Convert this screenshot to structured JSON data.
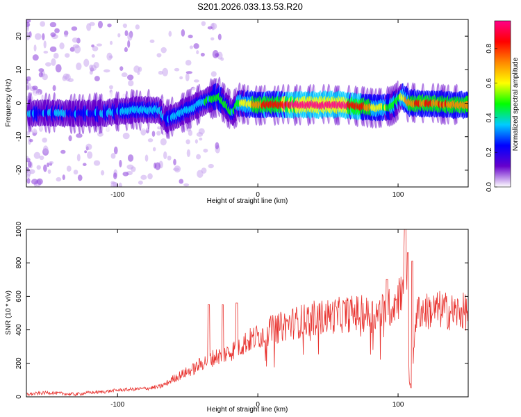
{
  "title": "S201.2026.033.13.53.R20",
  "chart_data": [
    {
      "type": "heatmap",
      "title": "S201.2026.033.13.53.R20",
      "xlabel": "Height of straight line (km)",
      "ylabel": "Frequency (Hz)",
      "xlim": [
        -165,
        150
      ],
      "ylim": [
        -25,
        25
      ],
      "xticks": [
        -100,
        0,
        100
      ],
      "yticks": [
        -20,
        -10,
        0,
        10,
        20
      ],
      "colorbar": {
        "label": "Normalized spectral amplitude",
        "range": [
          0.0,
          0.96
        ],
        "ticks": [
          0.0,
          0.2,
          0.4,
          0.6,
          0.8
        ],
        "tick_labels": [
          "0.0",
          "0.2",
          "0.4",
          "0.6",
          "0.8"
        ],
        "colors": [
          "#ffffff",
          "#6600cc",
          "#0000ff",
          "#00ccff",
          "#00ff00",
          "#ffff00",
          "#ff8800",
          "#ff0000",
          "#ff0088"
        ]
      },
      "ridge": {
        "x": [
          -160,
          -140,
          -120,
          -110,
          -100,
          -90,
          -80,
          -70,
          -65,
          -55,
          -45,
          -35,
          -28,
          -22,
          -18,
          -14,
          0,
          10,
          20,
          40,
          60,
          75,
          85,
          95,
          100,
          103,
          108,
          120,
          140,
          148
        ],
        "frequency": [
          -3,
          -3,
          -3,
          -3,
          -2.5,
          -2,
          -2,
          -2,
          -5,
          -3,
          -1,
          1,
          2,
          -1,
          -3,
          0,
          -0.5,
          -0.5,
          -0.5,
          -0.5,
          -0.5,
          -1,
          -1.5,
          -1,
          1,
          2,
          0,
          0,
          -0.5,
          -0.5
        ],
        "amplitude": [
          0.3,
          0.3,
          0.3,
          0.3,
          0.3,
          0.35,
          0.4,
          0.3,
          0.3,
          0.35,
          0.4,
          0.4,
          0.5,
          0.45,
          0.4,
          0.5,
          0.75,
          0.85,
          0.9,
          0.95,
          0.95,
          0.8,
          0.6,
          0.5,
          0.5,
          0.55,
          0.75,
          0.8,
          0.75,
          0.7
        ]
      }
    },
    {
      "type": "line",
      "xlabel": "Height of straight line (km)",
      "ylabel": "SNR (10 * v/v)",
      "xlim": [
        -165,
        150
      ],
      "ylim": [
        0,
        1000
      ],
      "xticks": [
        -100,
        0,
        100
      ],
      "yticks": [
        0,
        200,
        400,
        600,
        800,
        1000
      ],
      "series": [
        {
          "name": "SNR",
          "color": "#e8322e",
          "x": [
            -165,
            -150,
            -140,
            -130,
            -120,
            -110,
            -100,
            -90,
            -80,
            -70,
            -65,
            -60,
            -55,
            -50,
            -45,
            -40,
            -35,
            -30,
            -25,
            -20,
            -15,
            -10,
            -5,
            0,
            5,
            10,
            15,
            20,
            25,
            30,
            40,
            50,
            60,
            70,
            80,
            90,
            95,
            100,
            104,
            106,
            108,
            110,
            112,
            115,
            120,
            130,
            140,
            150
          ],
          "y": [
            15,
            25,
            20,
            15,
            25,
            30,
            40,
            45,
            50,
            60,
            80,
            110,
            130,
            150,
            170,
            200,
            220,
            240,
            250,
            270,
            290,
            320,
            340,
            360,
            380,
            400,
            410,
            430,
            440,
            450,
            470,
            480,
            490,
            500,
            490,
            510,
            540,
            580,
            700,
            650,
            100,
            40,
            450,
            520,
            510,
            520,
            505,
            510
          ],
          "peaks": {
            "x": [
              -35,
              -25,
              -15,
              92,
              105,
              107,
              110
            ],
            "y": [
              550,
              550,
              560,
              700,
              1000,
              860,
              810
            ]
          }
        }
      ]
    }
  ]
}
